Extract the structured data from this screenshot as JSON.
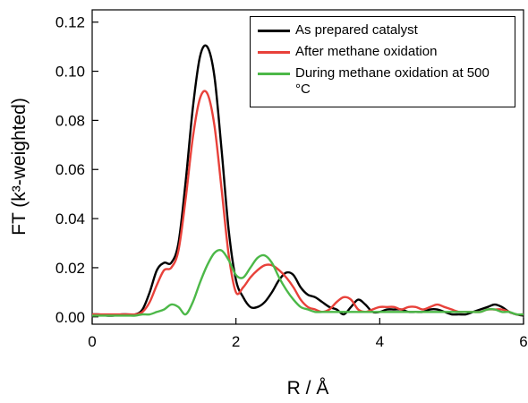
{
  "chart_data": {
    "type": "line",
    "x_label": "R / Å",
    "y_label": "FT (k³-weighted)",
    "x": [
      0,
      0.1,
      0.2,
      0.3,
      0.4,
      0.5,
      0.6,
      0.7,
      0.8,
      0.9,
      1.0,
      1.1,
      1.2,
      1.3,
      1.4,
      1.5,
      1.6,
      1.7,
      1.8,
      1.9,
      2.0,
      2.1,
      2.2,
      2.3,
      2.4,
      2.5,
      2.6,
      2.7,
      2.8,
      2.9,
      3.0,
      3.1,
      3.2,
      3.3,
      3.4,
      3.5,
      3.6,
      3.7,
      3.8,
      3.9,
      4.0,
      4.1,
      4.2,
      4.3,
      4.4,
      4.5,
      4.6,
      4.7,
      4.8,
      4.9,
      5.0,
      5.1,
      5.2,
      5.3,
      5.4,
      5.5,
      5.6,
      5.7,
      5.8,
      5.9,
      6.0
    ],
    "series": [
      {
        "name": "As prepared catalyst",
        "color": "#000000",
        "values": [
          0.001,
          0.001,
          0.0005,
          0.0005,
          0.001,
          0.001,
          0.001,
          0.003,
          0.01,
          0.019,
          0.022,
          0.022,
          0.03,
          0.055,
          0.085,
          0.106,
          0.11,
          0.098,
          0.068,
          0.035,
          0.015,
          0.008,
          0.004,
          0.004,
          0.006,
          0.01,
          0.015,
          0.018,
          0.017,
          0.012,
          0.009,
          0.008,
          0.006,
          0.004,
          0.003,
          0.001,
          0.004,
          0.007,
          0.005,
          0.002,
          0.002,
          0.003,
          0.003,
          0.003,
          0.002,
          0.002,
          0.002,
          0.003,
          0.003,
          0.002,
          0.001,
          0.001,
          0.001,
          0.002,
          0.003,
          0.004,
          0.005,
          0.004,
          0.002,
          0.001,
          0.0005
        ]
      },
      {
        "name": "After methane oxidation",
        "color": "#e8413a",
        "values": [
          0.001,
          0.001,
          0.001,
          0.001,
          0.001,
          0.001,
          0.001,
          0.002,
          0.006,
          0.013,
          0.019,
          0.02,
          0.027,
          0.048,
          0.073,
          0.089,
          0.091,
          0.078,
          0.052,
          0.025,
          0.01,
          0.012,
          0.016,
          0.019,
          0.021,
          0.021,
          0.019,
          0.016,
          0.012,
          0.007,
          0.004,
          0.003,
          0.002,
          0.003,
          0.006,
          0.008,
          0.007,
          0.003,
          0.002,
          0.003,
          0.004,
          0.004,
          0.004,
          0.003,
          0.004,
          0.004,
          0.003,
          0.004,
          0.005,
          0.004,
          0.003,
          0.002,
          0.002,
          0.002,
          0.002,
          0.003,
          0.003,
          0.003,
          0.002,
          0.001,
          0.001
        ]
      },
      {
        "name": "During methane oxidation at 500 °C",
        "color": "#4cb848",
        "values": [
          0.0005,
          0.0005,
          0.0005,
          0.0005,
          0.0005,
          0.0005,
          0.0005,
          0.001,
          0.001,
          0.002,
          0.003,
          0.005,
          0.004,
          0.001,
          0.006,
          0.014,
          0.021,
          0.026,
          0.027,
          0.023,
          0.017,
          0.016,
          0.02,
          0.024,
          0.025,
          0.022,
          0.016,
          0.011,
          0.007,
          0.004,
          0.003,
          0.002,
          0.002,
          0.002,
          0.002,
          0.002,
          0.002,
          0.002,
          0.002,
          0.002,
          0.002,
          0.002,
          0.002,
          0.002,
          0.002,
          0.002,
          0.002,
          0.002,
          0.002,
          0.002,
          0.002,
          0.002,
          0.002,
          0.002,
          0.002,
          0.003,
          0.003,
          0.002,
          0.002,
          0.001,
          0.001
        ]
      }
    ],
    "xlim": [
      0,
      6
    ],
    "ylim": [
      -0.003,
      0.125
    ],
    "xticks": [
      0,
      2,
      4,
      6
    ],
    "yticks": [
      {
        "value": 0,
        "label": "0.00"
      },
      0.02,
      0.04,
      0.06,
      0.08,
      {
        "value": 0.1,
        "label": "0.10"
      },
      0.12
    ],
    "grid": false
  }
}
